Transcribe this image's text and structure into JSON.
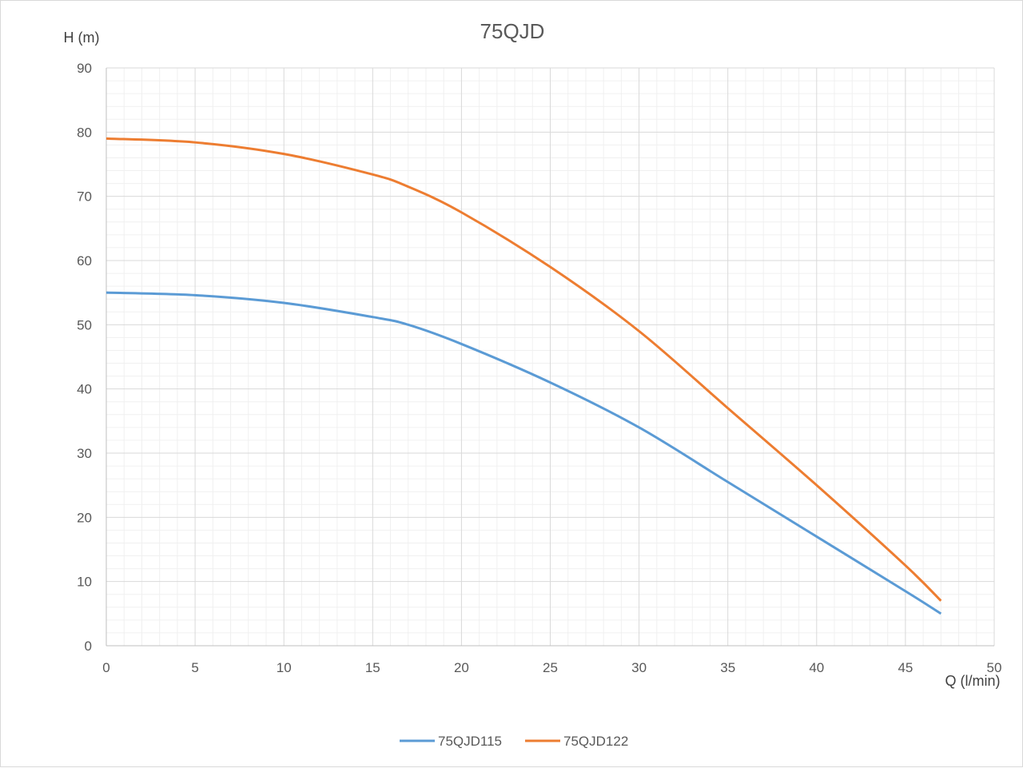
{
  "chart_data": {
    "type": "line",
    "title": "75QJD",
    "xlabel": "Q (l/min)",
    "ylabel": "H (m)",
    "xlim": [
      0,
      50
    ],
    "ylim": [
      0,
      90
    ],
    "x_ticks": [
      "0",
      "5",
      "10",
      "15",
      "20",
      "25",
      "30",
      "35",
      "40",
      "45",
      "50"
    ],
    "y_ticks": [
      "0",
      "10",
      "20",
      "30",
      "40",
      "50",
      "60",
      "70",
      "80",
      "90"
    ],
    "grid": true,
    "legend_position": "bottom",
    "series": [
      {
        "name": "75QJD115",
        "color": "#5b9bd5",
        "x": [
          0,
          5,
          10,
          15,
          17,
          20,
          25,
          30,
          35,
          40,
          45,
          47
        ],
        "y": [
          55,
          54.6,
          53.4,
          51.2,
          50,
          47,
          41,
          34,
          25.5,
          17,
          8.5,
          5
        ]
      },
      {
        "name": "75QJD122",
        "color": "#ed7d31",
        "x": [
          0,
          5,
          10,
          15,
          17,
          20,
          25,
          30,
          35,
          40,
          45,
          47
        ],
        "y": [
          79,
          78.4,
          76.6,
          73.4,
          71.5,
          67.5,
          59,
          49,
          37,
          25,
          12.5,
          7
        ]
      }
    ]
  }
}
